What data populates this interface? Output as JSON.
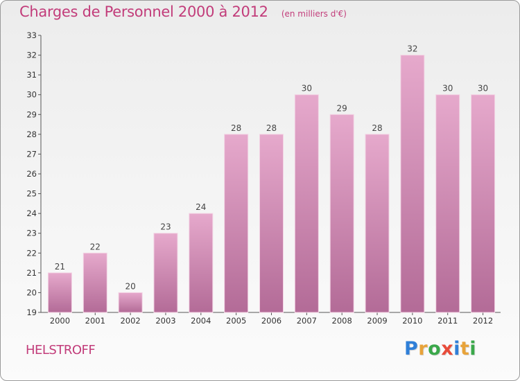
{
  "chart_data": {
    "type": "bar",
    "title": "Charges de Personnel 2000 à 2012",
    "subtitle": "(en milliers d'€)",
    "categories": [
      "2000",
      "2001",
      "2002",
      "2003",
      "2004",
      "2005",
      "2006",
      "2007",
      "2008",
      "2009",
      "2010",
      "2011",
      "2012"
    ],
    "values": [
      21,
      22,
      20,
      23,
      24,
      28,
      28,
      30,
      29,
      28,
      32,
      30,
      30
    ],
    "ylim": [
      19,
      33
    ],
    "yticks": [
      "19",
      "20",
      "21",
      "22",
      "23",
      "24",
      "25",
      "26",
      "27",
      "28",
      "29",
      "30",
      "31",
      "32",
      "33"
    ],
    "grid": false,
    "bar_color": "#d88db5"
  },
  "footer": {
    "commune": "HELSTROFF",
    "brand": [
      "P",
      "r",
      "o",
      "x",
      "i",
      "t",
      "i"
    ],
    "brand_colors": [
      "#2f7fd8",
      "#e8a33a",
      "#3aa84a",
      "#e84b3a",
      "#2f7fd8",
      "#e8a33a",
      "#3aa84a"
    ]
  }
}
